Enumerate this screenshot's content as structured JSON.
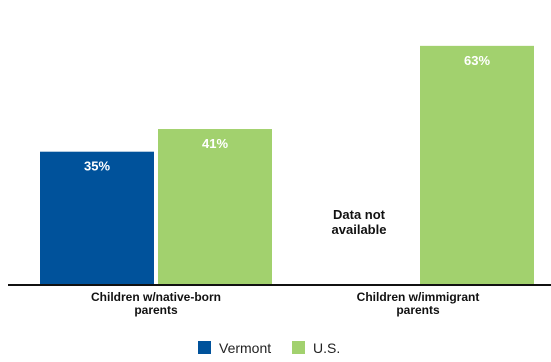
{
  "chart_data": {
    "type": "bar",
    "title": "",
    "xlabel": "",
    "ylabel": "",
    "ylim": [
      0,
      70
    ],
    "grid": false,
    "legend_position": "bottom",
    "categories": [
      [
        "Children w/native-born",
        "parents"
      ],
      [
        "Children w/immigrant",
        "parents"
      ]
    ],
    "series": [
      {
        "name": "Vermont",
        "color": "#00529B",
        "values": [
          35,
          null
        ],
        "labels": [
          "35%",
          null
        ]
      },
      {
        "name": "U.S.",
        "color": "#A2D16E",
        "values": [
          41,
          63
        ],
        "labels": [
          "41%",
          "63%"
        ]
      }
    ],
    "annotations": [
      {
        "category_index": 1,
        "series_index": 0,
        "lines": [
          "Data not",
          "available"
        ]
      }
    ]
  }
}
